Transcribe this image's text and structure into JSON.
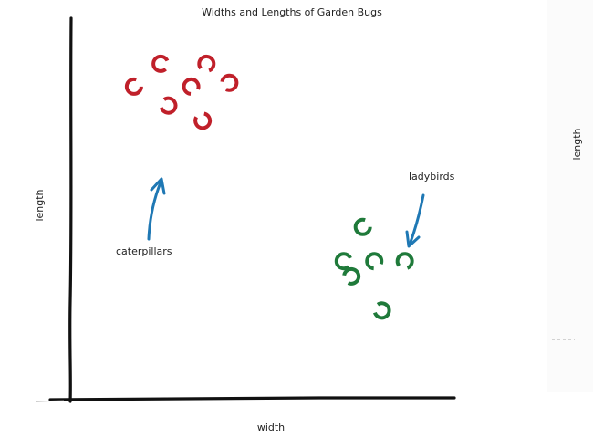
{
  "chart_data": {
    "type": "scatter",
    "title": "Widths and Lengths of Garden Bugs",
    "xlabel": "width",
    "ylabel": "length",
    "xlim": [
      0,
      10
    ],
    "ylim": [
      0,
      10
    ],
    "grid": false,
    "series": [
      {
        "name": "caterpillars",
        "color": "#c0202a",
        "points": [
          [
            1.6,
            8.2
          ],
          [
            2.3,
            8.8
          ],
          [
            3.1,
            8.2
          ],
          [
            3.5,
            8.8
          ],
          [
            4.1,
            8.3
          ],
          [
            2.5,
            7.7
          ],
          [
            3.4,
            7.3
          ]
        ]
      },
      {
        "name": "ladybirds",
        "color": "#1f7a3a",
        "points": [
          [
            7.6,
            4.5
          ],
          [
            7.1,
            3.6
          ],
          [
            7.9,
            3.6
          ],
          [
            8.7,
            3.6
          ],
          [
            7.3,
            3.2
          ],
          [
            8.1,
            2.3
          ]
        ]
      }
    ],
    "annotations": [
      "caterpillars",
      "ladybirds"
    ]
  },
  "arrow_color": "#1f78b4",
  "right_panel": {
    "ylabel": "length"
  }
}
